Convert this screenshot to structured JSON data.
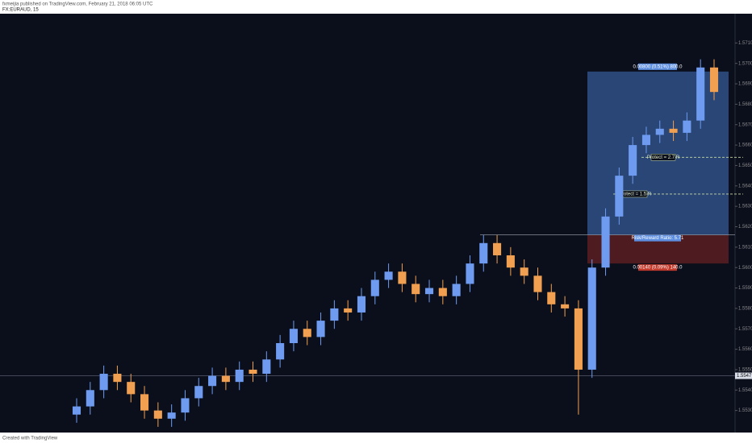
{
  "chart_data": {
    "type": "candlestick",
    "header": "fxmeijia published on TradingView.com, February 21, 2018 06:05 UTC",
    "symbol": "FX:EURAUD, 15",
    "footer": "Created with TradingView",
    "up_color": "#6e9bf0",
    "down_color": "#f0a050",
    "ylim": [
      1.552,
      1.572
    ],
    "yticks": [
      {
        "value": 1.553,
        "label": "1.5530"
      },
      {
        "value": 1.554,
        "label": "1.5540"
      },
      {
        "value": 1.555,
        "label": "1.5550"
      },
      {
        "value": 1.556,
        "label": "1.5560"
      },
      {
        "value": 1.557,
        "label": "1.5570"
      },
      {
        "value": 1.558,
        "label": "1.5580"
      },
      {
        "value": 1.559,
        "label": "1.5590"
      },
      {
        "value": 1.56,
        "label": "1.5600"
      },
      {
        "value": 1.561,
        "label": "1.5610"
      },
      {
        "value": 1.562,
        "label": "1.5620"
      },
      {
        "value": 1.563,
        "label": "1.5630"
      },
      {
        "value": 1.564,
        "label": "1.5640"
      },
      {
        "value": 1.565,
        "label": "1.5650"
      },
      {
        "value": 1.566,
        "label": "1.5660"
      },
      {
        "value": 1.567,
        "label": "1.5670"
      },
      {
        "value": 1.568,
        "label": "1.5680"
      },
      {
        "value": 1.569,
        "label": "1.5690"
      },
      {
        "value": 1.57,
        "label": "1.5700"
      },
      {
        "value": 1.571,
        "label": "1.5710"
      }
    ],
    "candles": [
      [
        1.5528,
        1.5536,
        1.5524,
        1.5532
      ],
      [
        1.5532,
        1.5544,
        1.5528,
        1.554
      ],
      [
        1.554,
        1.5552,
        1.5536,
        1.5548
      ],
      [
        1.5548,
        1.5552,
        1.554,
        1.5544
      ],
      [
        1.5544,
        1.5548,
        1.5534,
        1.5538
      ],
      [
        1.5538,
        1.5542,
        1.5526,
        1.553
      ],
      [
        1.553,
        1.5534,
        1.5522,
        1.5526
      ],
      [
        1.5526,
        1.5533,
        1.5522,
        1.5529
      ],
      [
        1.5529,
        1.554,
        1.5525,
        1.5536
      ],
      [
        1.5536,
        1.5546,
        1.5532,
        1.5542
      ],
      [
        1.5542,
        1.5551,
        1.5538,
        1.5547
      ],
      [
        1.5547,
        1.5551,
        1.554,
        1.5544
      ],
      [
        1.5544,
        1.5554,
        1.554,
        1.555
      ],
      [
        1.555,
        1.5554,
        1.5544,
        1.5548
      ],
      [
        1.5548,
        1.5559,
        1.5544,
        1.5555
      ],
      [
        1.5555,
        1.5567,
        1.5551,
        1.5563
      ],
      [
        1.5563,
        1.5574,
        1.5559,
        1.557
      ],
      [
        1.557,
        1.5574,
        1.5562,
        1.5566
      ],
      [
        1.5566,
        1.5578,
        1.5562,
        1.5574
      ],
      [
        1.5574,
        1.5584,
        1.557,
        1.558
      ],
      [
        1.558,
        1.5584,
        1.5574,
        1.5578
      ],
      [
        1.5578,
        1.559,
        1.5574,
        1.5586
      ],
      [
        1.5586,
        1.5598,
        1.5582,
        1.5594
      ],
      [
        1.5594,
        1.5602,
        1.559,
        1.5598
      ],
      [
        1.5598,
        1.5602,
        1.5588,
        1.5592
      ],
      [
        1.5592,
        1.5596,
        1.5583,
        1.5587
      ],
      [
        1.5587,
        1.5594,
        1.5583,
        1.559
      ],
      [
        1.559,
        1.5594,
        1.5582,
        1.5586
      ],
      [
        1.5586,
        1.5596,
        1.5582,
        1.5592
      ],
      [
        1.5592,
        1.5606,
        1.5588,
        1.5602
      ],
      [
        1.5602,
        1.5616,
        1.5598,
        1.5612
      ],
      [
        1.5612,
        1.5616,
        1.5602,
        1.5606
      ],
      [
        1.5606,
        1.561,
        1.5596,
        1.56
      ],
      [
        1.56,
        1.5604,
        1.5592,
        1.5596
      ],
      [
        1.5596,
        1.56,
        1.5584,
        1.5588
      ],
      [
        1.5588,
        1.5592,
        1.5578,
        1.5582
      ],
      [
        1.5582,
        1.5586,
        1.5576,
        1.558
      ],
      [
        1.558,
        1.5584,
        1.5528,
        1.555
      ],
      [
        1.555,
        1.5604,
        1.5546,
        1.56
      ],
      [
        1.56,
        1.5629,
        1.5596,
        1.5625
      ],
      [
        1.5625,
        1.5649,
        1.5621,
        1.5645
      ],
      [
        1.5645,
        1.5664,
        1.5641,
        1.566
      ],
      [
        1.566,
        1.5669,
        1.5656,
        1.5665
      ],
      [
        1.5665,
        1.5672,
        1.5661,
        1.5668
      ],
      [
        1.5668,
        1.5672,
        1.5662,
        1.5666
      ],
      [
        1.5666,
        1.5676,
        1.5662,
        1.5672
      ],
      [
        1.5672,
        1.5702,
        1.5668,
        1.5698
      ],
      [
        1.5698,
        1.5702,
        1.5682,
        1.5686
      ]
    ],
    "levels": [
      {
        "value": 1.5547,
        "label": "1.5547"
      }
    ],
    "position": {
      "entry": 1.5616,
      "target": 1.5696,
      "stop": 1.5602,
      "target_label": "0.00800 (0.51%) 800.0",
      "ratio_label": "Risk/Reward Ratio: 5.71",
      "stop_label": "0.00140 (0.09%) 140.0"
    },
    "annotations": [
      {
        "text": "Protect = 2.7 R",
        "price": 1.5654
      },
      {
        "text": "Protect = 1.5 R",
        "price": 1.5636
      }
    ]
  }
}
